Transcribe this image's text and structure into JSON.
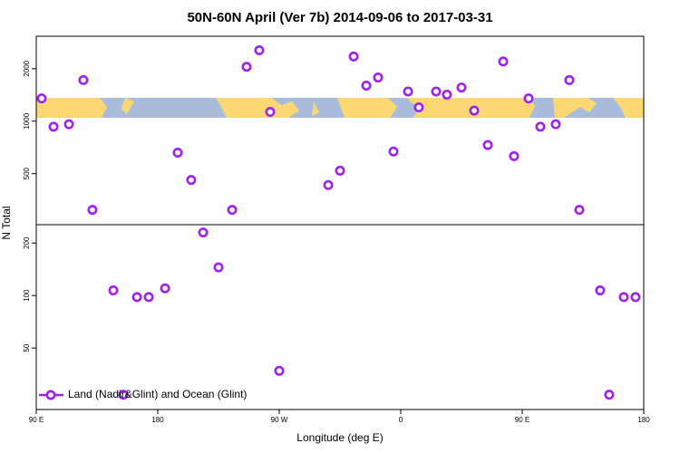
{
  "chart_data": {
    "type": "scatter",
    "title": "50N-60N April (Ver 7b)   2014-09-06 to 2017-03-31",
    "xlabel": "Longitude (deg E)",
    "ylabel": "N Total",
    "xlim": [
      90,
      540
    ],
    "xticks": [
      {
        "value": 90,
        "label": "90 E"
      },
      180,
      {
        "value": 270,
        "label": "90 W"
      },
      {
        "value": 360,
        "label": "0"
      },
      {
        "value": 450,
        "label": "90 E"
      },
      {
        "value": 540,
        "label": "180"
      }
    ],
    "ylim": [
      22.2,
      3070
    ],
    "yscale": "log",
    "yticks": [
      50,
      100,
      200,
      500,
      1000,
      2000
    ],
    "legend": "bottom-left",
    "series": [
      {
        "name": "Land (Nadir&Glint) and Ocean (Glint)",
        "color": "#a020f0",
        "x": [
          94.0,
          102.8,
          114.2,
          124.9,
          131.6,
          147.1,
          154.5,
          164.6,
          173.3,
          185.4,
          194.8,
          204.8,
          213.6,
          225.0,
          235.1,
          245.8,
          255.2,
          263.3,
          270.0,
          306.3,
          315.0,
          325.1,
          334.5,
          343.2,
          354.6,
          365.4,
          373.4,
          386.2,
          394.2,
          405.0,
          414.4,
          424.5,
          435.9,
          443.9,
          454.7,
          463.4,
          474.8,
          484.9,
          492.3,
          507.7,
          514.4,
          525.2,
          533.9
        ],
        "values": [
          1350,
          930,
          960,
          1720,
          310,
          107,
          27,
          98,
          98,
          110,
          660,
          460,
          230,
          145,
          310,
          2050,
          2550,
          1130,
          37,
          430,
          520,
          2350,
          1600,
          1780,
          670,
          1480,
          1200,
          1480,
          1420,
          1560,
          1150,
          730,
          2200,
          630,
          1350,
          930,
          960,
          1720,
          310,
          107,
          27,
          98,
          98
        ]
      }
    ]
  }
}
